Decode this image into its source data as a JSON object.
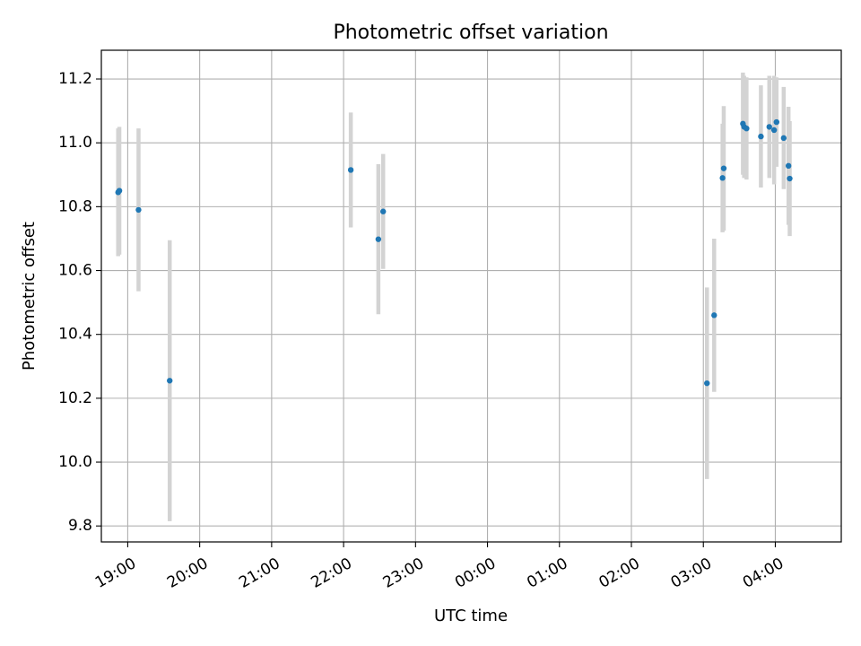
{
  "chart_data": {
    "type": "scatter",
    "title": "Photometric offset variation",
    "xlabel": "UTC time",
    "ylabel": "Photometric offset",
    "x_unit": "hours (UTC)",
    "xlim": [
      "18:38",
      "28:55"
    ],
    "ylim": [
      9.75,
      11.29
    ],
    "grid": true,
    "x_ticks": [
      "19:00",
      "20:00",
      "21:00",
      "22:00",
      "23:00",
      "00:00",
      "01:00",
      "02:00",
      "03:00",
      "04:00"
    ],
    "y_ticks": [
      "9.8",
      "10.0",
      "10.2",
      "10.4",
      "10.6",
      "10.8",
      "11.0",
      "11.2"
    ],
    "marker_color": "#1f77b4",
    "errorbar_color": "#d3d3d3",
    "points": [
      {
        "time": "18:52",
        "y": 10.845,
        "yerr": 0.2
      },
      {
        "time": "18:53",
        "y": 10.85,
        "yerr": 0.2
      },
      {
        "time": "19:09",
        "y": 10.79,
        "yerr": 0.255
      },
      {
        "time": "19:35",
        "y": 10.255,
        "yerr": 0.44
      },
      {
        "time": "22:06",
        "y": 10.915,
        "yerr": 0.18
      },
      {
        "time": "22:29",
        "y": 10.698,
        "yerr": 0.235
      },
      {
        "time": "22:33",
        "y": 10.785,
        "yerr": 0.18
      },
      {
        "time": "27:03",
        "y": 10.247,
        "yerr": 0.3
      },
      {
        "time": "27:09",
        "y": 10.46,
        "yerr": 0.24
      },
      {
        "time": "27:16",
        "y": 10.89,
        "yerr": 0.17
      },
      {
        "time": "27:17",
        "y": 10.92,
        "yerr": 0.195
      },
      {
        "time": "27:33",
        "y": 11.06,
        "yerr": 0.16
      },
      {
        "time": "27:34",
        "y": 11.05,
        "yerr": 0.16
      },
      {
        "time": "27:36",
        "y": 11.045,
        "yerr": 0.16
      },
      {
        "time": "27:48",
        "y": 11.02,
        "yerr": 0.16
      },
      {
        "time": "27:55",
        "y": 11.05,
        "yerr": 0.16
      },
      {
        "time": "27:59",
        "y": 11.04,
        "yerr": 0.17
      },
      {
        "time": "28:01",
        "y": 11.065,
        "yerr": 0.14
      },
      {
        "time": "28:07",
        "y": 11.015,
        "yerr": 0.16
      },
      {
        "time": "28:11",
        "y": 10.928,
        "yerr": 0.185
      },
      {
        "time": "28:12",
        "y": 10.888,
        "yerr": 0.18
      }
    ]
  }
}
